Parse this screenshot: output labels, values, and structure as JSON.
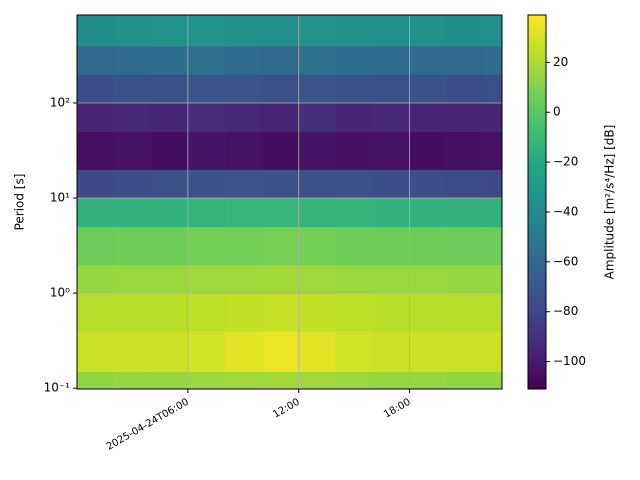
{
  "chart_data": {
    "type": "heatmap",
    "ylabel": "Period [s]",
    "colorbar_label": "Amplitude [m²/s⁴/Hz] [dB]",
    "colormap": "viridis",
    "x": [
      "2025-04-24T00:00",
      "2025-04-24T02:00",
      "2025-04-24T04:00",
      "2025-04-24T06:00",
      "2025-04-24T08:00",
      "2025-04-24T10:00",
      "2025-04-24T12:00",
      "2025-04-24T14:00",
      "2025-04-24T16:00",
      "2025-04-24T18:00",
      "2025-04-24T20:00",
      "2025-04-24T22:00"
    ],
    "y": [
      0.098,
      0.15,
      0.4,
      1,
      2,
      5,
      10,
      20,
      50,
      100,
      200,
      400
    ],
    "values": [
      [
        14,
        15,
        15,
        16,
        17,
        18,
        17,
        16,
        15,
        15,
        14,
        14
      ],
      [
        27,
        28,
        28,
        29,
        33,
        35,
        33,
        29,
        28,
        28,
        27,
        27
      ],
      [
        22,
        23,
        23,
        24,
        25,
        26,
        25,
        24,
        23,
        23,
        22,
        22
      ],
      [
        15,
        16,
        16,
        17,
        17,
        18,
        17,
        16,
        16,
        16,
        15,
        15
      ],
      [
        5,
        6,
        6,
        7,
        7,
        8,
        7,
        6,
        6,
        6,
        5,
        5
      ],
      [
        -15,
        -14,
        -14,
        -13,
        -12,
        -12,
        -13,
        -13,
        -14,
        -14,
        -15,
        -15
      ],
      [
        -78,
        -76,
        -75,
        -74,
        -73,
        -74,
        -75,
        -74,
        -76,
        -76,
        -77,
        -78
      ],
      [
        -105,
        -104,
        -106,
        -103,
        -104,
        -106,
        -103,
        -105,
        -104,
        -106,
        -105,
        -104
      ],
      [
        -96,
        -94,
        -95,
        -93,
        -94,
        -96,
        -92,
        -95,
        -94,
        -95,
        -96,
        -95
      ],
      [
        -76,
        -74,
        -75,
        -72,
        -73,
        -75,
        -72,
        -74,
        -75,
        -74,
        -76,
        -75
      ],
      [
        -60,
        -58,
        -57,
        -56,
        -58,
        -59,
        -56,
        -57,
        -58,
        -59,
        -60,
        -58
      ],
      [
        -38,
        -36,
        -35,
        -34,
        -36,
        -37,
        -35,
        -36,
        -37,
        -36,
        -38,
        -37
      ]
    ],
    "xlim": [
      "2025-04-24T00:00",
      "2025-04-24T23:00"
    ],
    "xticks": [
      "2025-04-24T06:00",
      {
        "value": "2025-04-24T12:00",
        "label": "12:00"
      },
      {
        "value": "2025-04-24T18:00",
        "label": "18:00"
      }
    ],
    "ylim": [
      0.098,
      843
    ],
    "ylog": true,
    "yticks": [
      {
        "value": 0.1,
        "label": "10⁻¹"
      },
      {
        "value": 1,
        "label": "10⁰"
      },
      {
        "value": 10,
        "label": "10¹"
      },
      {
        "value": 100,
        "label": "10²"
      }
    ],
    "clim": [
      -111,
      39
    ],
    "cticks": [
      {
        "value": -100,
        "label": "−100"
      },
      {
        "value": -80,
        "label": "−80"
      },
      {
        "value": -60,
        "label": "−60"
      },
      {
        "value": -40,
        "label": "−40"
      },
      {
        "value": -20,
        "label": "−20"
      },
      0,
      20
    ],
    "grid": true
  }
}
